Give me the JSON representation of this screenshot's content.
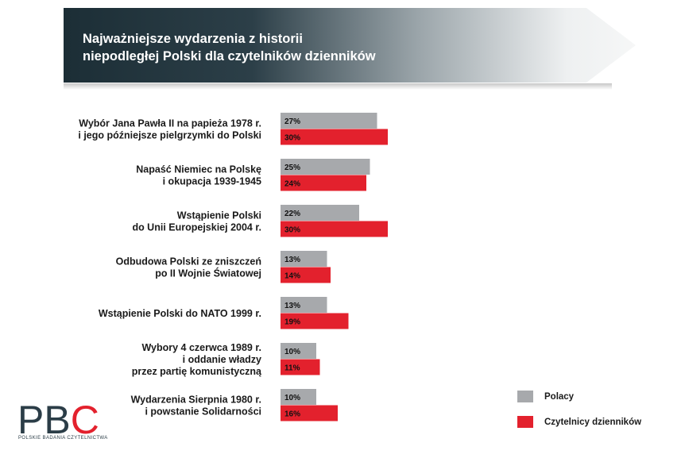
{
  "header": {
    "title_lines": [
      "Najważniejsze wydarzenia z historii",
      "niepodległej Polski dla czytelników dzienników"
    ]
  },
  "chart_data": {
    "type": "bar",
    "orientation": "horizontal",
    "title": "Najważniejsze wydarzenia z historii niepodległej Polski dla czytelników dzienników",
    "categories": [
      [
        "Wybór Jana Pawła II na papieża 1978 r.",
        "i jego późniejsze pielgrzymki do Polski"
      ],
      [
        "Napaść Niemiec na Polskę",
        "i okupacja 1939-1945"
      ],
      [
        "Wstąpienie Polski",
        "do Unii Europejskiej 2004 r."
      ],
      [
        "Odbudowa Polski ze zniszczeń",
        "po II Wojnie Światowej"
      ],
      [
        "Wstąpienie Polski do NATO 1999 r."
      ],
      [
        "Wybory 4 czerwca 1989 r.",
        "i oddanie władzy",
        "przez partię komunistyczną"
      ],
      [
        "Wydarzenia Sierpnia 1980 r.",
        "i powstanie Solidarności"
      ]
    ],
    "series": [
      {
        "name": "Polacy",
        "color": "#a7a9ac",
        "value_labels": [
          "27%",
          "25%",
          "22%",
          "13%",
          "13%",
          "10%",
          "10%"
        ],
        "values": [
          27,
          25,
          22,
          13,
          13,
          10,
          10
        ]
      },
      {
        "name": "Czytelnicy dzienników",
        "color": "#e3212d",
        "value_labels": [
          "30%",
          "24%",
          "30%",
          "14%",
          "19%",
          "11%",
          "16%"
        ],
        "values": [
          30,
          24,
          30,
          14,
          19,
          11,
          16
        ]
      }
    ],
    "value_unit": "%",
    "legend_position": "bottom-right",
    "xlim": [
      0,
      30
    ]
  },
  "legend": {
    "items": [
      {
        "label": "Polacy",
        "color": "#a7a9ac"
      },
      {
        "label": "Czytelnicy dzienników",
        "color": "#e3212d"
      }
    ]
  },
  "logo": {
    "letters": [
      "P",
      "B",
      "C"
    ],
    "caption": "POLSKIE BADANIA CZYTELNICTWA"
  },
  "colors": {
    "header_dark": "#1c2e36",
    "header_light": "#eef0f1",
    "logo_dark": "#2b3d47",
    "logo_red": "#e3212d"
  }
}
